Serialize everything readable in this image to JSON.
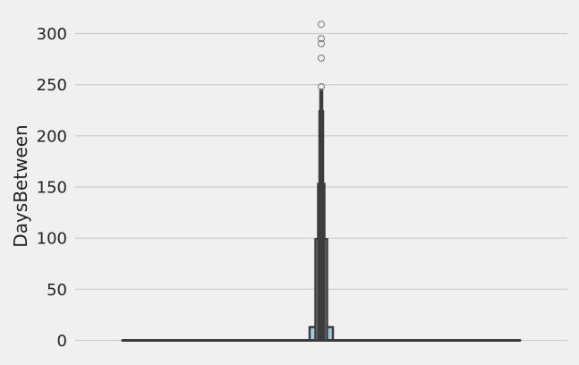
{
  "chart_data": {
    "type": "boxen",
    "xlabel": "",
    "ylabel": "DaysBetween",
    "ylim": [
      0,
      310
    ],
    "y_ticks": [
      "0",
      "50",
      "100",
      "150",
      "200",
      "250",
      "300"
    ],
    "grid": true,
    "boxes": [
      {
        "low": 0,
        "high": 13
      },
      {
        "low": 0,
        "high": 99
      },
      {
        "low": 0,
        "high": 153
      },
      {
        "low": 0,
        "high": 224
      },
      {
        "low": 0,
        "high": 245
      }
    ],
    "median": 0,
    "outliers": [
      248,
      276,
      290,
      295,
      309
    ],
    "colors": {
      "background": "#f0f0f0",
      "grid": "#cbcbcb",
      "box_fill": "#a6c8dd",
      "box_edge": "#3c3c3c",
      "outlier_edge": "#777777"
    }
  }
}
